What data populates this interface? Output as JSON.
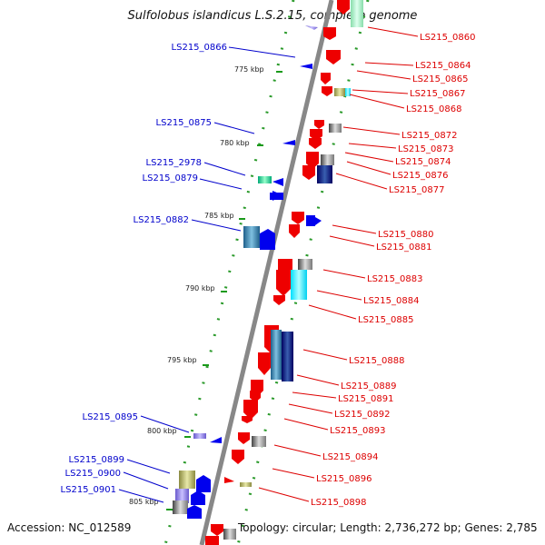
{
  "title": "Sulfolobus islandicus L.S.2.15, complete genome",
  "accession": "Accession: NC_012589",
  "footer": "Topology: circular; Length: 2,736,272 bp; Genes: 2,785",
  "scale_labels": [
    "775 kbp",
    "780 kbp",
    "785 kbp",
    "790 kbp",
    "795 kbp",
    "800 kbp",
    "805 kbp"
  ],
  "genes_left": [
    "LS215_0866",
    "LS215_0875",
    "LS215_2978",
    "LS215_0879",
    "LS215_0882",
    "LS215_0895",
    "LS215_0899",
    "LS215_0900",
    "LS215_0901"
  ],
  "genes_right": [
    "LS215_0860",
    "LS215_0864",
    "LS215_0865",
    "LS215_0867",
    "LS215_0868",
    "LS215_0872",
    "LS215_0873",
    "LS215_0874",
    "LS215_0876",
    "LS215_0877",
    "LS215_0880",
    "LS215_0881",
    "LS215_0883",
    "LS215_0884",
    "LS215_0885",
    "LS215_0888",
    "LS215_0889",
    "LS215_0891",
    "LS215_0892",
    "LS215_0893",
    "LS215_0894",
    "LS215_0896",
    "LS215_0898"
  ],
  "colors": {
    "forward_label": "#0000cc",
    "reverse_label": "#dd0000",
    "backbone": "#888888",
    "tick": "#1a9a1a",
    "forward_gene": "#0000ee",
    "reverse_gene": "#ee0000"
  }
}
